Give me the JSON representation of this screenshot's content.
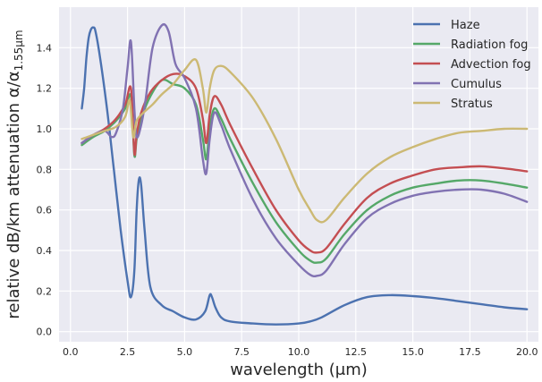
{
  "chart_data": {
    "type": "line",
    "title": "",
    "xlabel": "wavelength (μm)",
    "ylabel": "relative dB/km attenuation α/α",
    "ylabel_subscript": "1.55μm",
    "xlim": [
      -0.5,
      20.5
    ],
    "ylim": [
      -0.05,
      1.6
    ],
    "xticks": [
      0.0,
      2.5,
      5.0,
      7.5,
      10.0,
      12.5,
      15.0,
      17.5,
      20.0
    ],
    "xtick_labels": [
      "0.0",
      "2.5",
      "5.0",
      "7.5",
      "10.0",
      "12.5",
      "15.0",
      "17.5",
      "20.0"
    ],
    "yticks": [
      0.0,
      0.2,
      0.4,
      0.6,
      0.8,
      1.0,
      1.2,
      1.4
    ],
    "ytick_labels": [
      "0.0",
      "0.2",
      "0.4",
      "0.6",
      "0.8",
      "1.0",
      "1.2",
      "1.4"
    ],
    "grid": true,
    "background": "#eaeaf2",
    "legend_position": "top-right",
    "series": [
      {
        "name": "Haze",
        "color": "#4c72b0",
        "x": [
          0.5,
          0.6,
          0.7,
          0.8,
          0.9,
          1.0,
          1.1,
          1.3,
          1.6,
          1.9,
          2.2,
          2.5,
          2.65,
          2.8,
          2.9,
          3.0,
          3.1,
          3.25,
          3.5,
          4.0,
          4.5,
          5.0,
          5.5,
          5.9,
          6.1,
          6.2,
          6.35,
          6.6,
          7.0,
          8.0,
          9.0,
          10.0,
          10.5,
          11.0,
          12.0,
          13.0,
          14.0,
          15.0,
          16.0,
          17.0,
          18.0,
          19.0,
          20.0
        ],
        "values": [
          1.1,
          1.2,
          1.35,
          1.45,
          1.49,
          1.5,
          1.48,
          1.35,
          1.1,
          0.8,
          0.5,
          0.25,
          0.17,
          0.3,
          0.6,
          0.75,
          0.72,
          0.5,
          0.22,
          0.13,
          0.1,
          0.07,
          0.06,
          0.1,
          0.18,
          0.17,
          0.12,
          0.07,
          0.05,
          0.04,
          0.035,
          0.04,
          0.05,
          0.07,
          0.13,
          0.17,
          0.18,
          0.175,
          0.165,
          0.15,
          0.135,
          0.12,
          0.11
        ]
      },
      {
        "name": "Radiation fog",
        "color": "#55a868",
        "x": [
          0.5,
          1.0,
          1.5,
          2.0,
          2.4,
          2.65,
          2.8,
          2.9,
          3.1,
          3.5,
          4.0,
          4.5,
          5.0,
          5.5,
          5.8,
          5.95,
          6.1,
          6.3,
          6.6,
          7.0,
          8.0,
          9.0,
          10.0,
          10.5,
          10.8,
          11.2,
          12.0,
          13.0,
          14.0,
          15.0,
          16.0,
          17.0,
          18.0,
          19.0,
          20.0
        ],
        "values": [
          0.92,
          0.96,
          0.99,
          1.04,
          1.1,
          1.16,
          0.87,
          0.95,
          1.05,
          1.16,
          1.24,
          1.22,
          1.2,
          1.12,
          0.95,
          0.85,
          1.0,
          1.1,
          1.05,
          0.95,
          0.73,
          0.54,
          0.4,
          0.35,
          0.34,
          0.36,
          0.48,
          0.6,
          0.67,
          0.71,
          0.73,
          0.745,
          0.745,
          0.73,
          0.71
        ]
      },
      {
        "name": "Advection fog",
        "color": "#c44e52",
        "x": [
          0.5,
          1.0,
          1.5,
          2.0,
          2.4,
          2.65,
          2.8,
          2.9,
          3.1,
          3.5,
          4.0,
          4.5,
          5.0,
          5.5,
          5.8,
          5.95,
          6.1,
          6.3,
          6.6,
          7.0,
          8.0,
          9.0,
          10.0,
          10.5,
          10.8,
          11.2,
          12.0,
          13.0,
          14.0,
          15.0,
          16.0,
          17.0,
          18.0,
          19.0,
          20.0
        ],
        "values": [
          0.93,
          0.97,
          1.0,
          1.05,
          1.12,
          1.2,
          0.88,
          0.97,
          1.08,
          1.18,
          1.24,
          1.27,
          1.26,
          1.2,
          1.05,
          0.93,
          1.07,
          1.16,
          1.12,
          1.02,
          0.8,
          0.6,
          0.45,
          0.4,
          0.39,
          0.41,
          0.53,
          0.66,
          0.73,
          0.77,
          0.8,
          0.81,
          0.815,
          0.805,
          0.79
        ]
      },
      {
        "name": "Cumulus",
        "color": "#8172b2",
        "x": [
          0.5,
          1.0,
          1.5,
          1.8,
          2.0,
          2.3,
          2.5,
          2.65,
          2.8,
          2.9,
          3.1,
          3.3,
          3.6,
          4.0,
          4.3,
          4.6,
          5.0,
          5.5,
          5.8,
          5.95,
          6.1,
          6.3,
          6.6,
          7.0,
          8.0,
          9.0,
          10.0,
          10.5,
          10.8,
          11.2,
          12.0,
          13.0,
          14.0,
          15.0,
          16.0,
          17.0,
          18.0,
          19.0,
          20.0
        ],
        "values": [
          0.93,
          0.97,
          0.99,
          0.96,
          0.98,
          1.1,
          1.3,
          1.43,
          1.1,
          0.96,
          1.02,
          1.15,
          1.4,
          1.51,
          1.48,
          1.32,
          1.25,
          1.1,
          0.85,
          0.78,
          0.95,
          1.08,
          1.02,
          0.9,
          0.65,
          0.46,
          0.33,
          0.28,
          0.275,
          0.3,
          0.43,
          0.56,
          0.63,
          0.67,
          0.69,
          0.7,
          0.7,
          0.68,
          0.64
        ]
      },
      {
        "name": "Stratus",
        "color": "#ccb974",
        "x": [
          0.5,
          1.0,
          1.5,
          2.0,
          2.4,
          2.6,
          2.75,
          2.9,
          3.2,
          3.6,
          4.0,
          4.5,
          5.0,
          5.5,
          5.8,
          5.95,
          6.1,
          6.3,
          6.6,
          7.0,
          8.0,
          9.0,
          10.0,
          10.5,
          10.8,
          11.2,
          12.0,
          13.0,
          14.0,
          15.0,
          16.0,
          17.0,
          18.0,
          19.0,
          20.0
        ],
        "values": [
          0.95,
          0.97,
          0.99,
          1.01,
          1.06,
          1.14,
          0.96,
          1.04,
          1.08,
          1.12,
          1.17,
          1.22,
          1.29,
          1.34,
          1.2,
          1.08,
          1.2,
          1.29,
          1.31,
          1.28,
          1.15,
          0.95,
          0.7,
          0.6,
          0.55,
          0.55,
          0.66,
          0.78,
          0.86,
          0.91,
          0.95,
          0.98,
          0.99,
          1.0,
          1.0
        ]
      }
    ]
  }
}
